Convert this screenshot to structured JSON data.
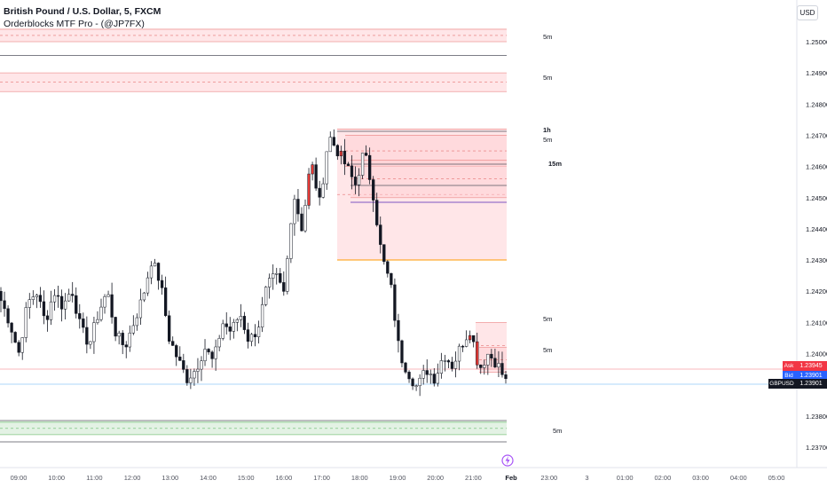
{
  "legend": {
    "symbol_line": "British Pound / U.S. Dollar, 5, FXCM",
    "indicator_line": "Orderblocks MTF Pro - (@JP7FX)"
  },
  "toolbar": {
    "currency": "USD"
  },
  "colors": {
    "bull": "#ffffff",
    "bear": "#131722",
    "bear_ob": "#e53935",
    "zone_red": "#ffcdd2",
    "zone_green": "#c8e6c9",
    "line_gray": "#9598a1",
    "ask": "#f23645",
    "bid": "#2962ff",
    "last": "#131722"
  },
  "chart_data": {
    "type": "candlestick",
    "symbol": "GBPUSD",
    "timeframe": "5",
    "ylim": [
      1.2365,
      1.2515
    ],
    "y_ticks": [
      "1.25000",
      "1.24900",
      "1.24800",
      "1.24700",
      "1.24600",
      "1.24500",
      "1.24400",
      "1.24300",
      "1.24200",
      "1.24100",
      "1.24000",
      "1.23800",
      "1.23700"
    ],
    "x_ticks": [
      "09:00",
      "10:00",
      "11:00",
      "12:00",
      "13:00",
      "14:00",
      "15:00",
      "16:00",
      "17:00",
      "18:00",
      "19:00",
      "20:00",
      "21:00",
      "Feb",
      "23:00",
      "3",
      "01:00",
      "02:00",
      "03:00",
      "04:00",
      "05:00"
    ],
    "close_path": [
      1.2417,
      1.241,
      1.24,
      1.2416,
      1.242,
      1.241,
      1.242,
      1.2415,
      1.2421,
      1.2408,
      1.2403,
      1.2413,
      1.242,
      1.2406,
      1.2402,
      1.241,
      1.2418,
      1.243,
      1.2423,
      1.2405,
      1.2398,
      1.2392,
      1.2395,
      1.2402,
      1.2397,
      1.241,
      1.2407,
      1.2413,
      1.2404,
      1.2408,
      1.2421,
      1.2425,
      1.2419,
      1.2452,
      1.244,
      1.2462,
      1.2448,
      1.247,
      1.2465,
      1.246,
      1.2454,
      1.2465,
      1.2452,
      1.2431,
      1.2422,
      1.24,
      1.2394,
      1.2389,
      1.2395,
      1.2392,
      1.24,
      1.2396,
      1.2403,
      1.2408,
      1.2395,
      1.24,
      1.2397,
      1.2391
    ],
    "price_labels": {
      "ask": {
        "label": "Ask",
        "value": "1.23945"
      },
      "bid": {
        "label": "Bid",
        "value": "1.23901"
      },
      "last": {
        "label": "GBPUSD",
        "value": "1.23901"
      }
    },
    "orderblocks": [
      {
        "tf": "5m",
        "kind": "bearish",
        "top": 1.2504,
        "bottom": 1.25
      },
      {
        "tf": "5m",
        "kind": "bearish",
        "top": 1.249,
        "bottom": 1.2484
      },
      {
        "tf": "1h",
        "kind": "bearish",
        "top": 1.2472,
        "bottom": 1.243
      },
      {
        "tf": "5m",
        "kind": "bearish",
        "top": 1.247,
        "bottom": 1.246
      },
      {
        "tf": "15m",
        "kind": "bearish",
        "top": 1.2462,
        "bottom": 1.245
      },
      {
        "tf": "5m",
        "kind": "bearish",
        "top": 1.241,
        "bottom": 1.2395
      },
      {
        "tf": "5m",
        "kind": "bearish",
        "top": 1.2402,
        "bottom": 1.2394
      },
      {
        "tf": "5m",
        "kind": "bullish",
        "top": 1.2378,
        "bottom": 1.2374
      }
    ],
    "tf_labels": [
      "5m",
      "5m",
      "1h",
      "5m",
      "15m",
      "5m",
      "5m",
      "5m"
    ],
    "event_icon": "lightning-icon"
  }
}
